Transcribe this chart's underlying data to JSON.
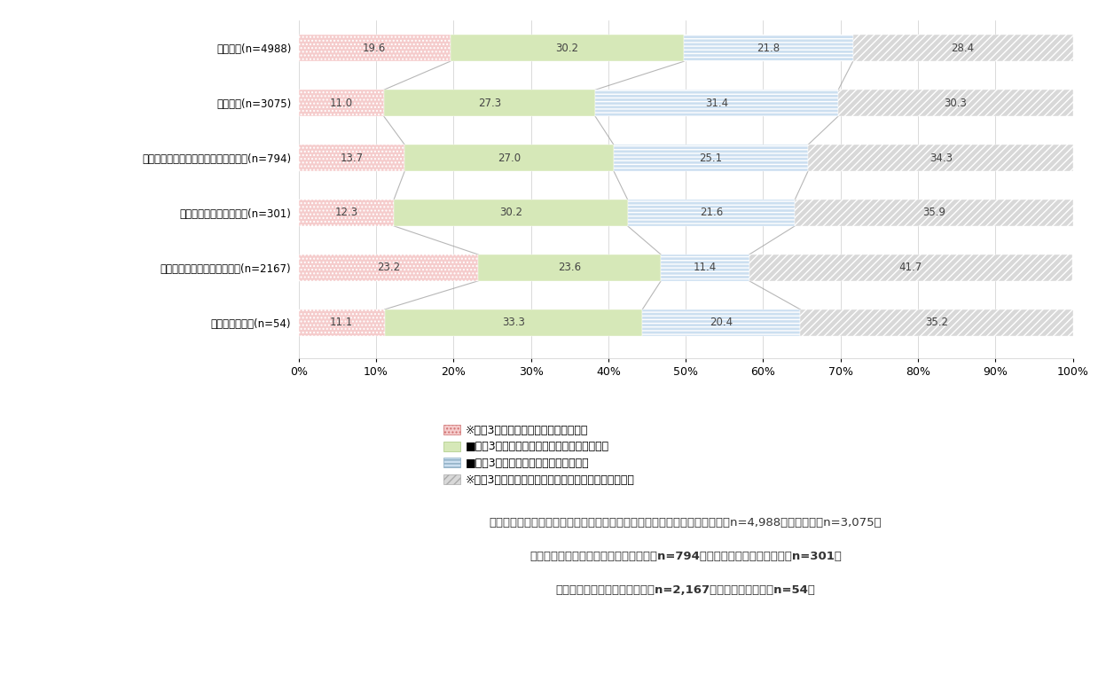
{
  "categories": [
    "パワハラ(n=4988)",
    "セクハラ(n=3075)",
    "妍娠・出産・育児休業等ハラスメント(n=794)",
    "介護休業等ハラスメント(n=301)",
    "顧客等からの著しい迷惑行為(n=2167)",
    "就活等セクハラ(n=54)"
  ],
  "values": [
    [
      19.6,
      30.2,
      21.8,
      28.4
    ],
    [
      11.0,
      27.3,
      31.4,
      30.3
    ],
    [
      13.7,
      27.0,
      25.1,
      34.3
    ],
    [
      12.3,
      30.2,
      21.6,
      35.9
    ],
    [
      23.2,
      23.6,
      11.4,
      41.7
    ],
    [
      11.1,
      33.3,
      20.4,
      35.2
    ]
  ],
  "seg_facecolors": [
    "#f5cccc",
    "#d6e8b8",
    "#ccdff0",
    "#d8d8d8"
  ],
  "seg_edgecolors": [
    "#d07070",
    "#a8c880",
    "#88aac0",
    "#aaaaaa"
  ],
  "seg_hatches": [
    "....",
    "",
    "----",
    "////"
  ],
  "legend_labels": [
    "過去3年間に相談件数が増加している",
    "過去3年間に相談があり、件数は変わらない",
    "過去3年間に相談件数は減少している",
    "過去3年間に相談はあるが、件数の増減は分からない"
  ],
  "legend_prefix": [
    "※",
    "■",
    "■",
    "※"
  ],
  "xlabel_ticks": [
    "0%",
    "10%",
    "20%",
    "30%",
    "40%",
    "50%",
    "60%",
    "70%",
    "80%",
    "90%",
    "100%"
  ],
  "tick_positions": [
    0,
    10,
    20,
    30,
    40,
    50,
    60,
    70,
    80,
    90,
    100
  ],
  "footnote_line1": "（対象：過去３年間にハラスメントに関する相談があった企業　パワハラ：n=4,988、セクハラ：n=3,075、",
  "footnote_line2": "妍娠・出産・育児休業等ハラスメント：n=794、介護休業等ハラスメント：n=301、",
  "footnote_line3": "顧客等からの著しい迷惑行為：n=2,167、就活等セクハラ：n=54）",
  "bg_color": "#ffffff",
  "bar_height": 0.48,
  "grid_color": "#cccccc",
  "line_color": "#999999",
  "text_color": "#444444"
}
